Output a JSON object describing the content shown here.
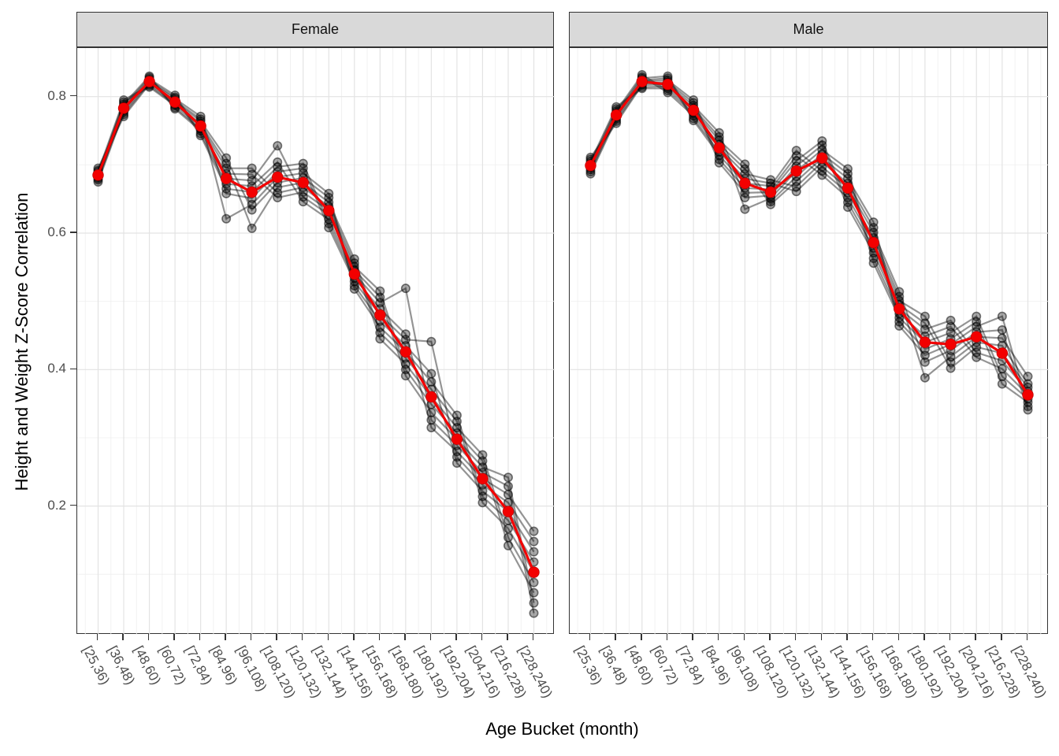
{
  "figure": {
    "y_axis_title": "Height and Weight Z-Score Correlation",
    "x_axis_title": "Age Bucket (month)"
  },
  "chart_data": {
    "type": "line",
    "description": "Faceted line chart: many semi-transparent black series with points plus a red mean series, per sex facet",
    "categories": [
      "[25,36)",
      "[36,48)",
      "[48,60)",
      "[60,72)",
      "[72,84)",
      "[84,96)",
      "[96,108)",
      "[108,120)",
      "[120,132)",
      "[132,144)",
      "[144,156)",
      "[156,168)",
      "[168,180)",
      "[180,192)",
      "[192,204)",
      "[204,216)",
      "[216,228)",
      "[228,240)"
    ],
    "y_ticks": [
      0.8,
      0.6,
      0.4,
      0.2
    ],
    "y_tick_labels": [
      "0.8",
      "0.6",
      "0.4",
      "0.2"
    ],
    "y_minor_ticks": [
      0.7,
      0.5,
      0.3,
      0.1
    ],
    "ylim": [
      0.012,
      0.871
    ],
    "grid": "major-and-minor",
    "legend_position": "none",
    "facets": [
      {
        "label": "Female",
        "mean_series": [
          0.685,
          0.783,
          0.822,
          0.792,
          0.757,
          0.68,
          0.66,
          0.682,
          0.674,
          0.633,
          0.54,
          0.48,
          0.426,
          0.36,
          0.298,
          0.24,
          0.192,
          0.103
        ],
        "gray_series": [
          [
            0.675,
            0.777,
            0.822,
            0.797,
            0.771,
            0.658,
            0.651,
            0.69,
            0.695,
            0.608,
            0.529,
            0.48,
            0.444,
            0.441,
            0.272,
            0.231,
            0.205,
            0.148
          ],
          [
            0.678,
            0.78,
            0.824,
            0.799,
            0.743,
            0.665,
            0.66,
            0.697,
            0.702,
            0.614,
            0.534,
            0.489,
            0.452,
            0.315,
            0.28,
            0.24,
            0.217,
            0.163
          ],
          [
            0.68,
            0.783,
            0.826,
            0.802,
            0.746,
            0.672,
            0.669,
            0.704,
            0.646,
            0.62,
            0.54,
            0.498,
            0.519,
            0.326,
            0.289,
            0.249,
            0.229,
            0.043
          ],
          [
            0.682,
            0.786,
            0.828,
            0.782,
            0.75,
            0.68,
            0.677,
            0.728,
            0.653,
            0.627,
            0.546,
            0.506,
            0.391,
            0.337,
            0.298,
            0.257,
            0.242,
            0.058
          ],
          [
            0.685,
            0.789,
            0.83,
            0.784,
            0.753,
            0.687,
            0.686,
            0.652,
            0.66,
            0.633,
            0.551,
            0.515,
            0.4,
            0.349,
            0.307,
            0.266,
            0.142,
            0.073
          ],
          [
            0.687,
            0.792,
            0.814,
            0.787,
            0.757,
            0.695,
            0.695,
            0.659,
            0.667,
            0.639,
            0.556,
            0.445,
            0.408,
            0.36,
            0.315,
            0.275,
            0.154,
            0.088
          ],
          [
            0.69,
            0.795,
            0.816,
            0.789,
            0.76,
            0.702,
            0.607,
            0.667,
            0.674,
            0.645,
            0.562,
            0.454,
            0.417,
            0.371,
            0.324,
            0.205,
            0.167,
            0.103
          ],
          [
            0.692,
            0.771,
            0.818,
            0.792,
            0.764,
            0.71,
            0.634,
            0.674,
            0.681,
            0.652,
            0.518,
            0.462,
            0.426,
            0.382,
            0.333,
            0.214,
            0.179,
            0.118
          ],
          [
            0.695,
            0.774,
            0.82,
            0.794,
            0.767,
            0.621,
            0.642,
            0.682,
            0.688,
            0.658,
            0.523,
            0.471,
            0.435,
            0.394,
            0.263,
            0.222,
            0.192,
            0.133
          ]
        ]
      },
      {
        "label": "Male",
        "mean_series": [
          0.699,
          0.773,
          0.822,
          0.818,
          0.78,
          0.725,
          0.673,
          0.66,
          0.691,
          0.71,
          0.666,
          0.586,
          0.489,
          0.44,
          0.437,
          0.448,
          0.424,
          0.363
        ],
        "gray_series": [
          [
            0.687,
            0.767,
            0.822,
            0.824,
            0.795,
            0.708,
            0.666,
            0.664,
            0.713,
            0.685,
            0.652,
            0.586,
            0.501,
            0.478,
            0.411,
            0.44,
            0.435,
            0.379
          ],
          [
            0.69,
            0.77,
            0.824,
            0.827,
            0.765,
            0.714,
            0.673,
            0.669,
            0.721,
            0.691,
            0.659,
            0.593,
            0.507,
            0.388,
            0.419,
            0.448,
            0.446,
            0.39
          ],
          [
            0.693,
            0.773,
            0.827,
            0.83,
            0.768,
            0.719,
            0.68,
            0.673,
            0.661,
            0.697,
            0.666,
            0.601,
            0.514,
            0.411,
            0.428,
            0.455,
            0.458,
            0.341
          ],
          [
            0.696,
            0.776,
            0.829,
            0.806,
            0.772,
            0.725,
            0.687,
            0.678,
            0.668,
            0.704,
            0.673,
            0.608,
            0.464,
            0.421,
            0.437,
            0.463,
            0.478,
            0.346
          ],
          [
            0.699,
            0.779,
            0.832,
            0.809,
            0.776,
            0.73,
            0.694,
            0.642,
            0.676,
            0.71,
            0.68,
            0.616,
            0.47,
            0.43,
            0.445,
            0.47,
            0.379,
            0.352
          ],
          [
            0.702,
            0.782,
            0.812,
            0.812,
            0.78,
            0.736,
            0.701,
            0.646,
            0.683,
            0.716,
            0.687,
            0.556,
            0.476,
            0.44,
            0.454,
            0.478,
            0.39,
            0.357
          ],
          [
            0.705,
            0.785,
            0.814,
            0.815,
            0.783,
            0.741,
            0.635,
            0.651,
            0.691,
            0.722,
            0.694,
            0.563,
            0.482,
            0.449,
            0.463,
            0.418,
            0.401,
            0.363
          ],
          [
            0.708,
            0.761,
            0.817,
            0.818,
            0.787,
            0.747,
            0.652,
            0.655,
            0.698,
            0.729,
            0.638,
            0.571,
            0.489,
            0.459,
            0.472,
            0.425,
            0.413,
            0.368
          ],
          [
            0.711,
            0.764,
            0.819,
            0.821,
            0.791,
            0.703,
            0.659,
            0.66,
            0.706,
            0.735,
            0.645,
            0.578,
            0.495,
            0.468,
            0.402,
            0.433,
            0.424,
            0.374
          ]
        ]
      }
    ],
    "style": {
      "mean_color": "#F30000",
      "gray_line_color": "rgba(0,0,0,0.42)",
      "gray_point_fill": "rgba(0,0,0,0.34)",
      "gray_point_stroke": "rgba(0,0,0,0.52)",
      "strip_background": "#D9D9D9",
      "panel_border": "#333333",
      "grid_major": "#E3E3E3",
      "grid_minor": "#F0F0F0",
      "tick_text_color": "#4D4D4D"
    }
  }
}
